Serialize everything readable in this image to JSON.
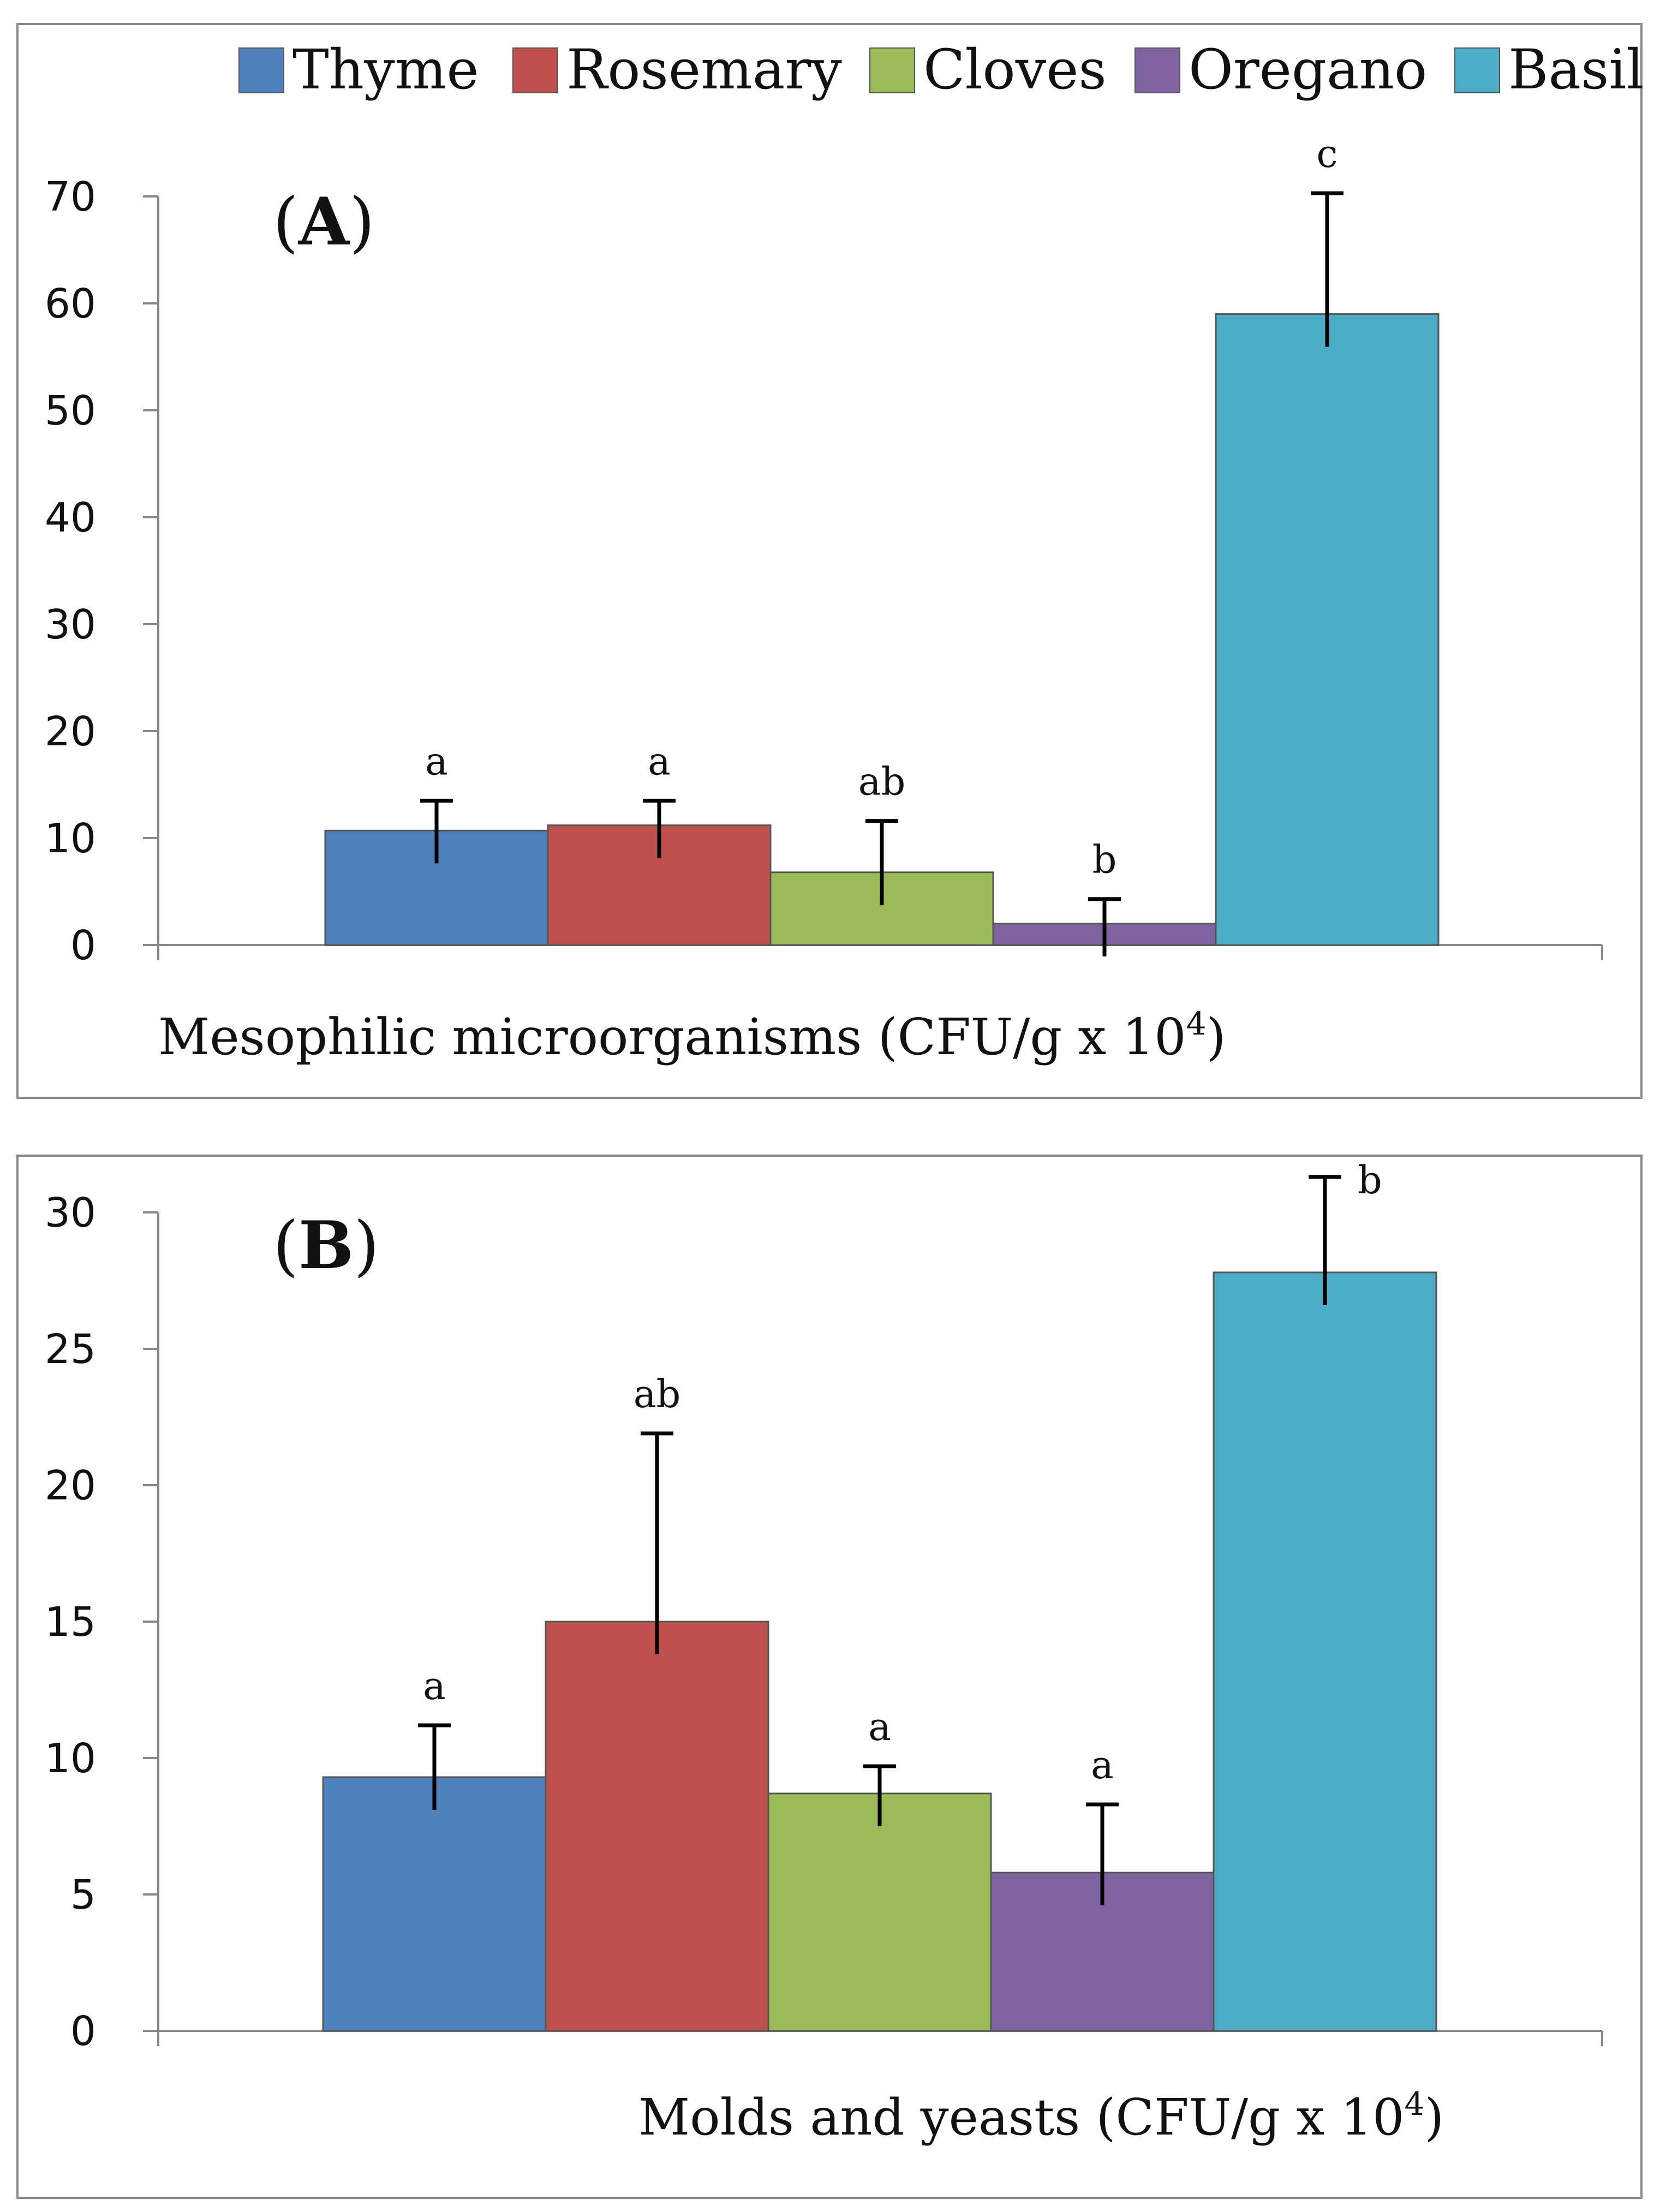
{
  "legend": {
    "series": [
      {
        "name": "Thyme",
        "color": "#4f81bd"
      },
      {
        "name": "Rosemary",
        "color": "#c0504d"
      },
      {
        "name": "Cloves",
        "color": "#9bbb59"
      },
      {
        "name": "Oregano",
        "color": "#8064a2"
      },
      {
        "name": "Basil",
        "color": "#4bacc6"
      }
    ]
  },
  "chart_data": [
    {
      "type": "bar",
      "panel": "A",
      "panel_label_bold": "A",
      "title": "",
      "xlabel_main": "Mesophilic microorganisms",
      "xlabel_unit": "(CFU/g x 10",
      "xlabel_exp": "4",
      "xlabel_close": ")",
      "ylabel": "",
      "ylim": [
        0,
        70
      ],
      "yticks": [
        0,
        10,
        20,
        30,
        40,
        50,
        60,
        70
      ],
      "tick_labels": [
        "0",
        "10",
        "20",
        "30",
        "40",
        "50",
        "60",
        "70"
      ],
      "categories": [
        "Thyme",
        "Rosemary",
        "Cloves",
        "Oregano",
        "Basil"
      ],
      "values": [
        10.7,
        11.2,
        6.8,
        2.0,
        59.0
      ],
      "errors": [
        2.8,
        2.3,
        4.8,
        2.3,
        11.3
      ],
      "significance": [
        "a",
        "a",
        "ab",
        "b",
        "c"
      ]
    },
    {
      "type": "bar",
      "panel": "B",
      "panel_label_bold": "B",
      "title": "",
      "xlabel_main": "Molds and yeasts",
      "xlabel_unit": "(CFU/g x 10",
      "xlabel_exp": "4",
      "xlabel_close": ")",
      "ylabel": "",
      "ylim": [
        0,
        30
      ],
      "yticks": [
        0,
        5,
        10,
        15,
        20,
        25,
        30
      ],
      "tick_labels": [
        "0",
        "5",
        "10",
        "15",
        "20",
        "25",
        "30"
      ],
      "categories": [
        "Thyme",
        "Rosemary",
        "Cloves",
        "Oregano",
        "Basil"
      ],
      "values": [
        9.3,
        15.0,
        8.7,
        5.8,
        27.8
      ],
      "errors": [
        1.9,
        6.9,
        1.0,
        2.5,
        3.5
      ],
      "significance": [
        "a",
        "ab",
        "a",
        "a",
        "b"
      ]
    }
  ]
}
